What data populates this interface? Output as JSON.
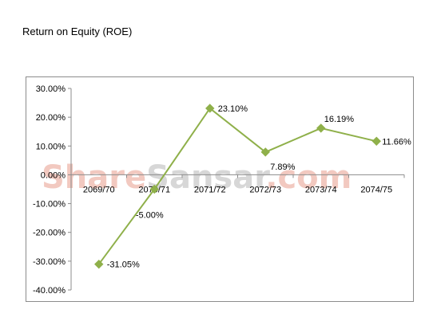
{
  "title": "Return on Equity (ROE)",
  "watermark": {
    "part1": "Share",
    "part2": "Sansar",
    "part3": ".com",
    "color1": "#f2c9c0",
    "color2": "#d7d7d7",
    "color3": "#f2c9c0"
  },
  "colors": {
    "series": "#8fb04a",
    "axis": "#8c8c8c",
    "frame": "#8c8c8c"
  },
  "chart_data": {
    "type": "line",
    "title": "Return on Equity (ROE)",
    "categories": [
      "2069/70",
      "2070/71",
      "2071/72",
      "2072/73",
      "2073/74",
      "2074/75"
    ],
    "series": [
      {
        "values": [
          -31.05,
          -5.0,
          23.1,
          7.89,
          16.19,
          11.66
        ],
        "labels": [
          "-31.05%",
          "-5.00%",
          "23.10%",
          "7.89%",
          "16.19%",
          "11.66%"
        ],
        "marker": "diamond"
      }
    ],
    "y_ticks": [
      "30.00%",
      "20.00%",
      "10.00%",
      "0.00%",
      "-10.00%",
      "-20.00%",
      "-30.00%",
      "-40.00%"
    ],
    "ylim": [
      -40,
      30
    ],
    "grid": false,
    "legend": "none"
  }
}
